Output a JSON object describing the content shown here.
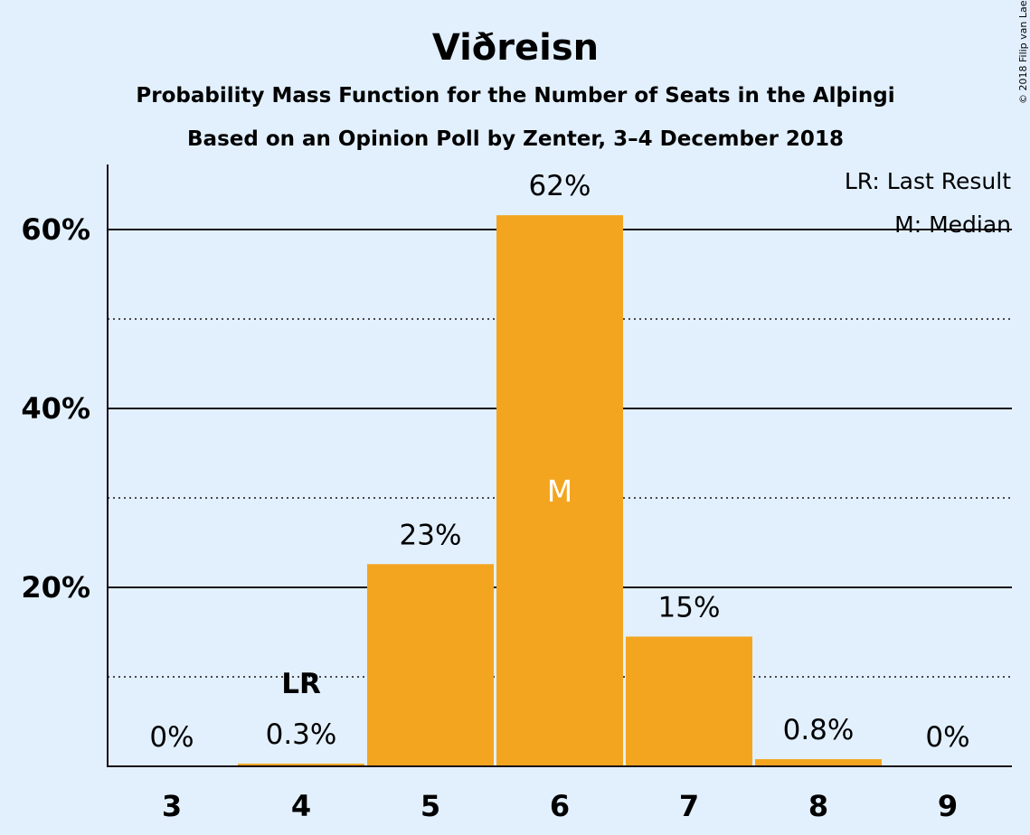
{
  "chart_data": {
    "type": "bar",
    "title": "Viðreisn",
    "subtitle1": "Probability Mass Function for the Number of Seats in the Alþingi",
    "subtitle2": "Based on an Opinion Poll by Zenter, 3–4 December 2018",
    "categories": [
      "3",
      "4",
      "5",
      "6",
      "7",
      "8",
      "9"
    ],
    "values": [
      0,
      0.3,
      22.6,
      61.6,
      14.5,
      0.8,
      0
    ],
    "data_labels": [
      "0%",
      "0.3%",
      "23%",
      "62%",
      "15%",
      "0.8%",
      "0%"
    ],
    "ylim": [
      0,
      67
    ],
    "yticks": [
      {
        "value": 20,
        "label": "20%"
      },
      {
        "value": 40,
        "label": "40%"
      },
      {
        "value": 60,
        "label": "60%"
      }
    ],
    "minor_gridlines": [
      10,
      30,
      50
    ],
    "bar_color": "#f4a51f",
    "last_result": {
      "category": "4",
      "label": "LR"
    },
    "median": {
      "category": "6",
      "label": "M"
    },
    "legend": {
      "placement": "top-right",
      "items": [
        "LR: Last Result",
        "M: Median"
      ]
    },
    "copyright": "© 2018 Filip van Laenen"
  }
}
